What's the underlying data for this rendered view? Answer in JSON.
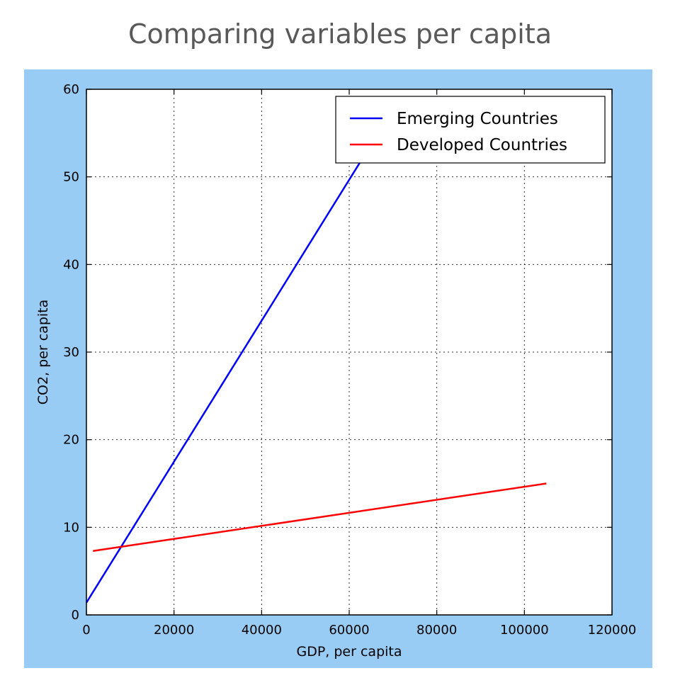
{
  "page": {
    "title": "Comparing variables per capita",
    "panel_color": "#99ccf5"
  },
  "chart_data": {
    "type": "line",
    "title": "",
    "xlabel": "GDP, per capita",
    "ylabel": "CO2, per capita",
    "xlim": [
      0,
      120000
    ],
    "ylim": [
      0,
      60
    ],
    "xticks": [
      0,
      20000,
      40000,
      60000,
      80000,
      100000,
      120000
    ],
    "xtick_labels": [
      "0",
      "20000",
      "40000",
      "60000",
      "80000",
      "100000",
      "120000"
    ],
    "yticks": [
      0,
      10,
      20,
      30,
      40,
      50,
      60
    ],
    "ytick_labels": [
      "0",
      "10",
      "20",
      "30",
      "40",
      "50",
      "60"
    ],
    "grid": true,
    "legend_position": "top-right",
    "series": [
      {
        "name": "Emerging Countries",
        "color": "#0000ff",
        "x": [
          0,
          66000
        ],
        "y": [
          1.4,
          54.5
        ]
      },
      {
        "name": "Developed Countries",
        "color": "#ff0000",
        "x": [
          1500,
          105000
        ],
        "y": [
          7.3,
          15.0
        ]
      }
    ]
  }
}
